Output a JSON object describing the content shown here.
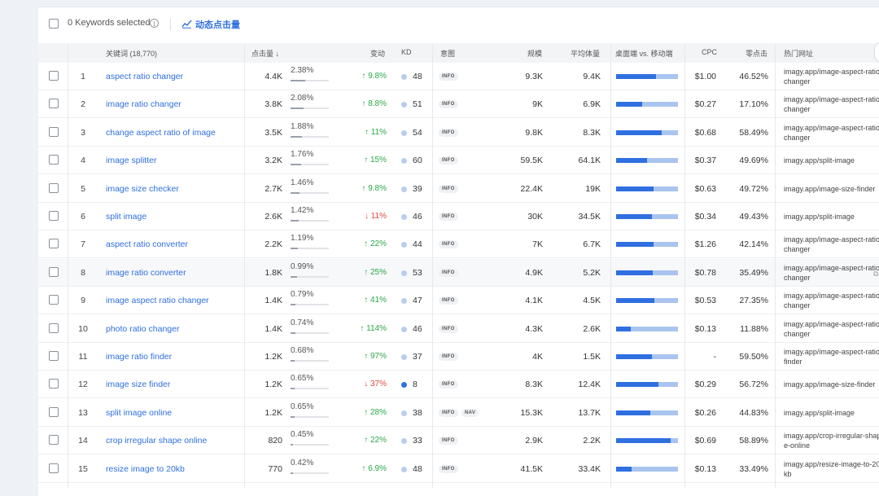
{
  "toolbar": {
    "selected_label": "0 Keywords selected",
    "info_glyph": "i",
    "trend_link": "动态点击量"
  },
  "columns": {
    "keyword": "关键词 (18,770)",
    "clicks": "点击量 ↓",
    "change": "变动",
    "kd": "KD",
    "intent": "意图",
    "volume": "规模",
    "avg_volume": "平均体量",
    "device": "桌面端 vs. 移动端",
    "cpc": "CPC",
    "zero_click": "零点击",
    "top_url": "热门网址"
  },
  "colors": {
    "accent": "#2f6fe0",
    "up": "#2aa845",
    "down": "#e5483d",
    "mobile_bar": "#a9c4ee"
  },
  "rows": [
    {
      "n": "1",
      "keyword": "aspect ratio changer",
      "clicks": "4.4K",
      "share": "2.38%",
      "share_frac": 0.38,
      "change": "↑ 9.8%",
      "dir": "up",
      "kd": "48",
      "intents": [
        "INFO"
      ],
      "volume": "9.3K",
      "avg": "9.4K",
      "desktop_frac": 0.65,
      "cpc": "$1.00",
      "zero": "46.52%",
      "url": "imagy.app/image-aspect-ratio-changer"
    },
    {
      "n": "2",
      "keyword": "image ratio changer",
      "clicks": "3.8K",
      "share": "2.08%",
      "share_frac": 0.33,
      "change": "↑ 8.8%",
      "dir": "up",
      "kd": "51",
      "intents": [
        "INFO"
      ],
      "volume": "9K",
      "avg": "6.9K",
      "desktop_frac": 0.42,
      "cpc": "$0.27",
      "zero": "17.10%",
      "url": "imagy.app/image-aspect-ratio-changer"
    },
    {
      "n": "3",
      "keyword": "change aspect ratio of image",
      "clicks": "3.5K",
      "share": "1.88%",
      "share_frac": 0.3,
      "change": "↑ 11%",
      "dir": "up",
      "kd": "54",
      "intents": [
        "INFO"
      ],
      "volume": "9.8K",
      "avg": "8.3K",
      "desktop_frac": 0.74,
      "cpc": "$0.68",
      "zero": "58.49%",
      "url": "imagy.app/image-aspect-ratio-changer"
    },
    {
      "n": "4",
      "keyword": "image splitter",
      "clicks": "3.2K",
      "share": "1.76%",
      "share_frac": 0.28,
      "change": "↑ 15%",
      "dir": "up",
      "kd": "60",
      "intents": [
        "INFO"
      ],
      "volume": "59.5K",
      "avg": "64.1K",
      "desktop_frac": 0.5,
      "cpc": "$0.37",
      "zero": "49.69%",
      "url": "imagy.app/split-image"
    },
    {
      "n": "5",
      "keyword": "image size checker",
      "clicks": "2.7K",
      "share": "1.46%",
      "share_frac": 0.23,
      "change": "↑ 9.8%",
      "dir": "up",
      "kd": "39",
      "intents": [
        "INFO"
      ],
      "volume": "22.4K",
      "avg": "19K",
      "desktop_frac": 0.6,
      "cpc": "$0.63",
      "zero": "49.72%",
      "url": "imagy.app/image-size-finder"
    },
    {
      "n": "6",
      "keyword": "split image",
      "clicks": "2.6K",
      "share": "1.42%",
      "share_frac": 0.22,
      "change": "↓ 11%",
      "dir": "down",
      "kd": "46",
      "intents": [
        "INFO"
      ],
      "volume": "30K",
      "avg": "34.5K",
      "desktop_frac": 0.58,
      "cpc": "$0.34",
      "zero": "49.43%",
      "url": "imagy.app/split-image"
    },
    {
      "n": "7",
      "keyword": "aspect ratio converter",
      "clicks": "2.2K",
      "share": "1.19%",
      "share_frac": 0.19,
      "change": "↑ 22%",
      "dir": "up",
      "kd": "44",
      "intents": [
        "INFO"
      ],
      "volume": "7K",
      "avg": "6.7K",
      "desktop_frac": 0.6,
      "cpc": "$1.26",
      "zero": "42.14%",
      "url": "imagy.app/image-aspect-ratio-changer"
    },
    {
      "n": "8",
      "keyword": "image ratio converter",
      "clicks": "1.8K",
      "share": "0.99%",
      "share_frac": 0.16,
      "change": "↑ 25%",
      "dir": "up",
      "kd": "53",
      "intents": [
        "INFO"
      ],
      "volume": "4.9K",
      "avg": "5.2K",
      "desktop_frac": 0.59,
      "cpc": "$0.78",
      "zero": "35.49%",
      "url": "imagy.app/image-aspect-ratio-changer"
    },
    {
      "n": "9",
      "keyword": "image aspect ratio changer",
      "clicks": "1.4K",
      "share": "0.79%",
      "share_frac": 0.13,
      "change": "↑ 41%",
      "dir": "up",
      "kd": "47",
      "intents": [
        "INFO"
      ],
      "volume": "4.1K",
      "avg": "4.5K",
      "desktop_frac": 0.62,
      "cpc": "$0.53",
      "zero": "27.35%",
      "url": "imagy.app/image-aspect-ratio-changer"
    },
    {
      "n": "10",
      "keyword": "photo ratio changer",
      "clicks": "1.4K",
      "share": "0.74%",
      "share_frac": 0.12,
      "change": "↑ 114%",
      "dir": "up",
      "kd": "46",
      "intents": [
        "INFO"
      ],
      "volume": "4.3K",
      "avg": "2.6K",
      "desktop_frac": 0.24,
      "cpc": "$0.13",
      "zero": "11.88%",
      "url": "imagy.app/image-aspect-ratio-changer"
    },
    {
      "n": "11",
      "keyword": "image ratio finder",
      "clicks": "1.2K",
      "share": "0.68%",
      "share_frac": 0.11,
      "change": "↑ 97%",
      "dir": "up",
      "kd": "37",
      "intents": [
        "INFO"
      ],
      "volume": "4K",
      "avg": "1.5K",
      "desktop_frac": 0.58,
      "cpc": "-",
      "zero": "59.50%",
      "url": "imagy.app/image-aspect-ratio-finder"
    },
    {
      "n": "12",
      "keyword": "image size finder",
      "clicks": "1.2K",
      "share": "0.65%",
      "share_frac": 0.1,
      "change": "↓ 37%",
      "dir": "down",
      "kd": "8",
      "kd_hard": true,
      "intents": [
        "INFO"
      ],
      "volume": "8.3K",
      "avg": "12.4K",
      "desktop_frac": 0.68,
      "cpc": "$0.29",
      "zero": "56.72%",
      "url": "imagy.app/image-size-finder"
    },
    {
      "n": "13",
      "keyword": "split image online",
      "clicks": "1.2K",
      "share": "0.65%",
      "share_frac": 0.1,
      "change": "↑ 28%",
      "dir": "up",
      "kd": "38",
      "intents": [
        "INFO",
        "NAV"
      ],
      "volume": "15.3K",
      "avg": "13.7K",
      "desktop_frac": 0.55,
      "cpc": "$0.26",
      "zero": "44.83%",
      "url": "imagy.app/split-image"
    },
    {
      "n": "14",
      "keyword": "crop irregular shape online",
      "clicks": "820",
      "share": "0.45%",
      "share_frac": 0.07,
      "change": "↑ 22%",
      "dir": "up",
      "kd": "33",
      "intents": [
        "INFO"
      ],
      "volume": "2.9K",
      "avg": "2.2K",
      "desktop_frac": 0.88,
      "cpc": "$0.69",
      "zero": "58.89%",
      "url": "imagy.app/crop-irregular-shape-online"
    },
    {
      "n": "15",
      "keyword": "resize image to 20kb",
      "clicks": "770",
      "share": "0.42%",
      "share_frac": 0.07,
      "change": "↑ 6.9%",
      "dir": "up",
      "kd": "48",
      "intents": [
        "INFO"
      ],
      "volume": "41.5K",
      "avg": "33.4K",
      "desktop_frac": 0.25,
      "cpc": "$0.13",
      "zero": "33.49%",
      "url": "imagy.app/resize-image-to-20kb"
    }
  ]
}
